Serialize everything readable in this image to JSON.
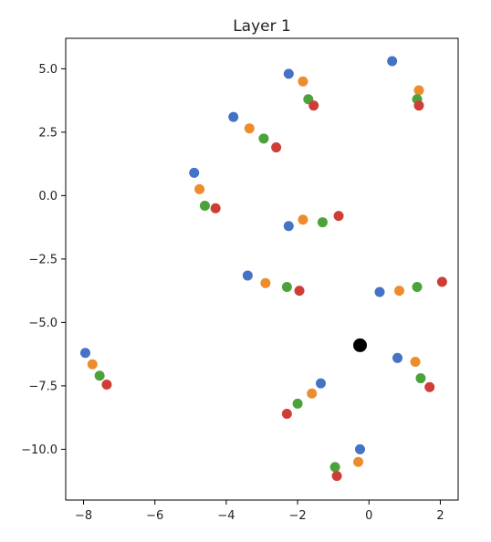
{
  "chart_data": {
    "type": "scatter",
    "title": "Layer 1",
    "xlabel": "",
    "ylabel": "",
    "xlim": [
      -8.5,
      2.5
    ],
    "ylim": [
      -12.0,
      6.2
    ],
    "xticks": [
      -8,
      -6,
      -4,
      -2,
      0,
      2
    ],
    "yticks": [
      5.0,
      2.5,
      0.0,
      -2.5,
      -5.0,
      -7.5,
      -10.0
    ],
    "xtick_labels": [
      "−8",
      "−6",
      "−4",
      "−2",
      "0",
      "2"
    ],
    "ytick_labels": [
      "5.0",
      "2.5",
      "0.0",
      "−2.5",
      "−5.0",
      "−7.5",
      "−10.0"
    ],
    "grid": false,
    "series": [
      {
        "color": "#4472c4",
        "points": [
          {
            "x": -7.95,
            "y": -6.2
          },
          {
            "x": -4.9,
            "y": 0.9
          },
          {
            "x": -3.8,
            "y": 3.1
          },
          {
            "x": -2.25,
            "y": 4.8
          },
          {
            "x": 0.65,
            "y": 5.3
          },
          {
            "x": -2.25,
            "y": -1.2
          },
          {
            "x": -3.4,
            "y": -3.15
          },
          {
            "x": 0.3,
            "y": -3.8
          },
          {
            "x": 0.8,
            "y": -6.4
          },
          {
            "x": -1.35,
            "y": -7.4
          },
          {
            "x": -0.25,
            "y": -10.0
          }
        ]
      },
      {
        "color": "#ed8c2c",
        "points": [
          {
            "x": -7.75,
            "y": -6.65
          },
          {
            "x": -4.75,
            "y": 0.25
          },
          {
            "x": -3.35,
            "y": 2.65
          },
          {
            "x": -1.85,
            "y": 4.5
          },
          {
            "x": 1.4,
            "y": 4.15
          },
          {
            "x": -1.85,
            "y": -0.95
          },
          {
            "x": -2.9,
            "y": -3.45
          },
          {
            "x": 0.85,
            "y": -3.75
          },
          {
            "x": 1.3,
            "y": -6.55
          },
          {
            "x": -1.6,
            "y": -7.8
          },
          {
            "x": -0.3,
            "y": -10.5
          }
        ]
      },
      {
        "color": "#4ca23a",
        "points": [
          {
            "x": -7.55,
            "y": -7.1
          },
          {
            "x": -4.6,
            "y": -0.4
          },
          {
            "x": -2.95,
            "y": 2.25
          },
          {
            "x": -1.7,
            "y": 3.8
          },
          {
            "x": 1.35,
            "y": 3.8
          },
          {
            "x": -1.3,
            "y": -1.05
          },
          {
            "x": -2.3,
            "y": -3.6
          },
          {
            "x": 1.35,
            "y": -3.6
          },
          {
            "x": 1.45,
            "y": -7.2
          },
          {
            "x": -2.0,
            "y": -8.2
          },
          {
            "x": -0.95,
            "y": -10.7
          }
        ]
      },
      {
        "color": "#cf3e36",
        "points": [
          {
            "x": -7.35,
            "y": -7.45
          },
          {
            "x": -4.3,
            "y": -0.5
          },
          {
            "x": -2.6,
            "y": 1.9
          },
          {
            "x": -1.55,
            "y": 3.55
          },
          {
            "x": 1.4,
            "y": 3.55
          },
          {
            "x": -0.85,
            "y": -0.8
          },
          {
            "x": -1.95,
            "y": -3.75
          },
          {
            "x": 2.05,
            "y": -3.4
          },
          {
            "x": 1.7,
            "y": -7.55
          },
          {
            "x": -2.3,
            "y": -8.6
          },
          {
            "x": -0.9,
            "y": -11.05
          }
        ]
      },
      {
        "color": "#000000",
        "points": [
          {
            "x": -0.25,
            "y": -5.9
          }
        ]
      }
    ]
  }
}
